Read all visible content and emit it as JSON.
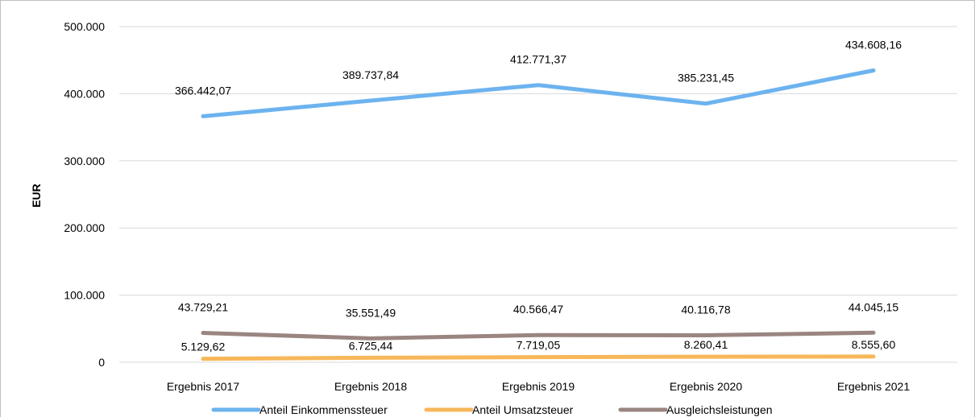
{
  "chart_data": {
    "type": "line",
    "title": "",
    "xlabel": "",
    "ylabel": "EUR",
    "categories": [
      "Ergebnis 2017",
      "Ergebnis 2018",
      "Ergebnis 2019",
      "Ergebnis 2020",
      "Ergebnis 2021"
    ],
    "ylim": [
      0,
      500000
    ],
    "yticks": [
      0,
      100000,
      200000,
      300000,
      400000,
      500000
    ],
    "ytick_labels": [
      "0",
      "100.000",
      "200.000",
      "300.000",
      "400.000",
      "500.000"
    ],
    "grid": true,
    "legend_position": "bottom",
    "series": [
      {
        "name": "Anteil Einkommenssteuer",
        "color": "#6cb3ef",
        "values": [
          366442.07,
          389737.84,
          412771.37,
          385231.45,
          434608.16
        ],
        "labels": [
          "366.442,07",
          "389.737,84",
          "412.771,37",
          "385.231,45",
          "434.608,16"
        ]
      },
      {
        "name": "Anteil Umsatzsteuer",
        "color": "#f7b75a",
        "values": [
          5129.62,
          6725.44,
          7719.05,
          8260.41,
          8555.6
        ],
        "labels": [
          "5.129,62",
          "6.725,44",
          "7.719,05",
          "8.260,41",
          "8.555,60"
        ]
      },
      {
        "name": "Ausgleichsleistungen",
        "color": "#9a8580",
        "values": [
          43729.21,
          35551.49,
          40566.47,
          40116.78,
          44045.15
        ],
        "labels": [
          "43.729,21",
          "35.551,49",
          "40.566,47",
          "40.116,78",
          "44.045,15"
        ]
      }
    ]
  }
}
